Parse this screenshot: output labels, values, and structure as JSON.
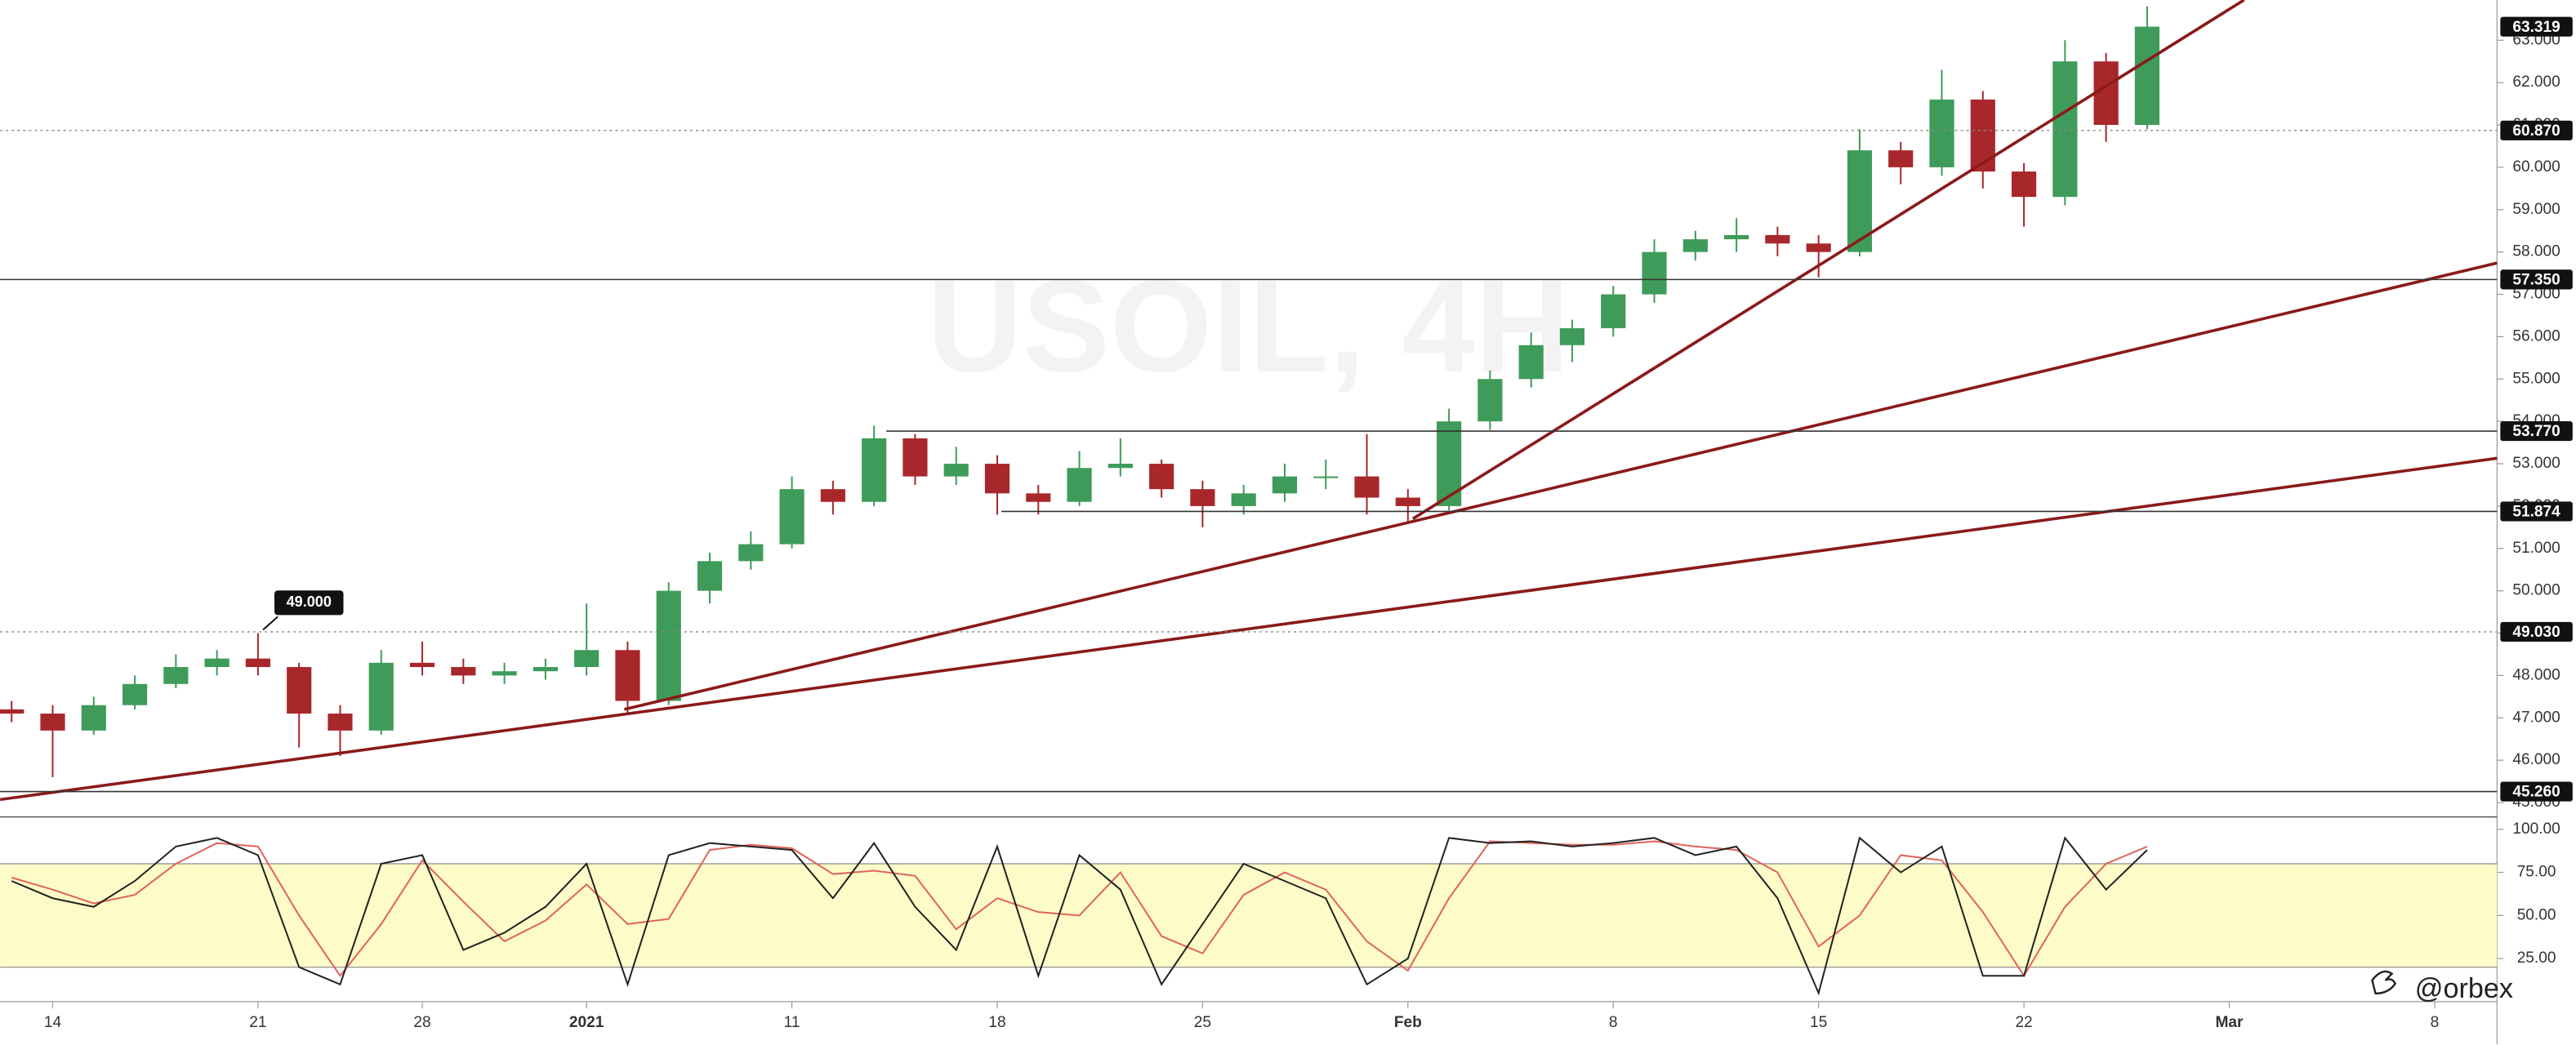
{
  "chart_data": [
    {
      "type": "candlestick",
      "watermark": "USOIL, 4H",
      "up_color": "#3f9b5a",
      "down_color": "#a8272b",
      "trend_color": "#8b1a1a",
      "xlim": [
        -1.28,
        59.52
      ],
      "ylim": [
        44.68,
        63.95
      ],
      "yticks": [
        {
          "value": 45,
          "label": "45.000"
        },
        {
          "value": 46,
          "label": "46.000"
        },
        {
          "value": 47,
          "label": "47.000"
        },
        {
          "value": 48,
          "label": "48.000"
        },
        {
          "value": 49,
          "label": "49.000"
        },
        {
          "value": 50,
          "label": "50.000"
        },
        {
          "value": 51,
          "label": "51.000"
        },
        {
          "value": 52,
          "label": "52.000"
        },
        {
          "value": 53,
          "label": "53.000"
        },
        {
          "value": 54,
          "label": "54.000"
        },
        {
          "value": 55,
          "label": "55.000"
        },
        {
          "value": 56,
          "label": "56.000"
        },
        {
          "value": 57,
          "label": "57.000"
        },
        {
          "value": 58,
          "label": "58.000"
        },
        {
          "value": 59,
          "label": "59.000"
        },
        {
          "value": 60,
          "label": "60.000"
        },
        {
          "value": 61,
          "label": "61.000"
        },
        {
          "value": 62,
          "label": "62.000"
        },
        {
          "value": 63,
          "label": "63.000"
        }
      ],
      "x": [
        -1,
        0,
        1,
        2,
        3,
        4,
        5,
        6,
        7,
        8,
        9,
        10,
        11,
        12,
        13,
        14,
        15,
        16,
        17,
        18,
        19,
        20,
        21,
        22,
        23,
        24,
        25,
        26,
        27,
        28,
        29,
        30,
        31,
        32,
        33,
        34,
        35,
        36,
        37,
        38,
        39,
        40,
        41,
        42,
        43,
        44,
        45,
        46,
        47,
        48,
        49,
        50,
        51
      ],
      "open": [
        47.2,
        47.1,
        46.7,
        47.3,
        47.8,
        48.2,
        48.4,
        48.2,
        47.1,
        46.7,
        48.3,
        48.2,
        48.0,
        48.1,
        48.2,
        48.6,
        47.4,
        50.0,
        50.7,
        51.1,
        52.4,
        52.1,
        53.6,
        52.7,
        53.0,
        52.3,
        52.1,
        52.9,
        53.0,
        52.4,
        52.0,
        52.3,
        52.7,
        52.7,
        52.2,
        52.0,
        54.0,
        55.0,
        55.8,
        56.2,
        57.0,
        58.0,
        58.3,
        58.4,
        58.2,
        58.0,
        60.4,
        60.0,
        61.6,
        59.9,
        59.3,
        62.5,
        61.0
      ],
      "high": [
        47.4,
        47.3,
        47.5,
        48.0,
        48.5,
        48.6,
        49.0,
        48.3,
        47.3,
        48.6,
        48.8,
        48.4,
        48.3,
        48.4,
        49.7,
        48.8,
        50.2,
        50.9,
        51.4,
        52.7,
        52.6,
        53.9,
        53.7,
        53.4,
        53.2,
        52.5,
        53.3,
        53.6,
        53.1,
        52.6,
        52.5,
        53.0,
        53.1,
        53.7,
        52.4,
        54.3,
        55.2,
        56.1,
        56.4,
        57.2,
        58.3,
        58.5,
        58.8,
        58.6,
        58.4,
        60.9,
        60.6,
        62.3,
        61.8,
        60.1,
        63.0,
        62.7,
        63.8
      ],
      "low": [
        46.9,
        45.6,
        46.6,
        47.2,
        47.7,
        48.0,
        48.0,
        46.3,
        46.1,
        46.6,
        48.0,
        47.8,
        47.8,
        47.9,
        48.0,
        47.1,
        47.3,
        49.7,
        50.5,
        51.0,
        51.8,
        52.0,
        52.5,
        52.5,
        51.8,
        51.8,
        52.0,
        52.7,
        52.2,
        51.5,
        51.8,
        52.1,
        52.4,
        51.8,
        51.6,
        51.9,
        53.8,
        54.8,
        55.4,
        56.0,
        56.8,
        57.8,
        58.0,
        57.9,
        57.4,
        57.9,
        59.6,
        59.8,
        59.5,
        58.6,
        59.1,
        60.6,
        60.9
      ],
      "close": [
        47.1,
        46.7,
        47.3,
        47.8,
        48.2,
        48.4,
        48.2,
        47.1,
        46.7,
        48.3,
        48.2,
        48.0,
        48.1,
        48.2,
        48.6,
        47.4,
        50.0,
        50.7,
        51.1,
        52.4,
        52.1,
        53.6,
        52.7,
        53.0,
        52.3,
        52.1,
        52.9,
        53.0,
        52.4,
        52.0,
        52.3,
        52.7,
        52.7,
        52.2,
        52.0,
        54.0,
        55.0,
        55.8,
        56.2,
        57.0,
        58.0,
        58.3,
        58.4,
        58.2,
        58.0,
        60.4,
        60.0,
        61.6,
        59.9,
        59.3,
        62.5,
        61.0,
        63.32
      ],
      "levels": [
        {
          "value": 63.319,
          "label": "63.319",
          "style": "none"
        },
        {
          "value": 60.87,
          "label": "60.870",
          "style": "dotted"
        },
        {
          "value": 57.35,
          "label": "57.350",
          "style": "solid"
        },
        {
          "value": 53.77,
          "label": "53.770",
          "style": "solid",
          "start": 20.3
        },
        {
          "value": 51.874,
          "label": "51.874",
          "style": "solid",
          "start": 23.1
        },
        {
          "value": 49.03,
          "label": "49.030",
          "style": "dotted"
        },
        {
          "value": 45.26,
          "label": "45.260",
          "style": "solid"
        }
      ],
      "trendlines": [
        {
          "x": [
            -1.28,
            59.52
          ],
          "y": [
            45.07,
            53.13
          ]
        },
        {
          "x": [
            13.92,
            59.52
          ],
          "y": [
            47.2,
            57.74
          ]
        },
        {
          "x": [
            33.12,
            53.36
          ],
          "y": [
            51.7,
            63.95
          ]
        }
      ],
      "annotation": {
        "value": 49,
        "label": "49.000",
        "x": 5
      }
    },
    {
      "type": "stochastic",
      "logo": "@orbex",
      "xlim": [
        -1.28,
        59.52
      ],
      "ylim": [
        0,
        106.7
      ],
      "band": [
        20,
        80
      ],
      "band_color": "#fdfbc8",
      "yticks": [
        {
          "value": 25,
          "label": "25.00"
        },
        {
          "value": 50,
          "label": "50.00"
        },
        {
          "value": 75,
          "label": "75.00"
        },
        {
          "value": 100,
          "label": "100.00"
        }
      ],
      "xticks": [
        {
          "value": 0,
          "label": "14"
        },
        {
          "value": 5,
          "label": "21"
        },
        {
          "value": 9,
          "label": "28"
        },
        {
          "value": 13,
          "label": "2021"
        },
        {
          "value": 18,
          "label": "11"
        },
        {
          "value": 23,
          "label": "18"
        },
        {
          "value": 28,
          "label": "25"
        },
        {
          "value": 33,
          "label": "Feb"
        },
        {
          "value": 38,
          "label": "8"
        },
        {
          "value": 43,
          "label": "15"
        },
        {
          "value": 48,
          "label": "22"
        },
        {
          "value": 53,
          "label": "Mar"
        },
        {
          "value": 58,
          "label": "8"
        }
      ],
      "x": [
        -1,
        0,
        1,
        2,
        3,
        4,
        5,
        6,
        7,
        8,
        9,
        10,
        11,
        12,
        13,
        14,
        15,
        16,
        17,
        18,
        19,
        20,
        21,
        22,
        23,
        24,
        25,
        26,
        27,
        28,
        29,
        30,
        31,
        32,
        33,
        34,
        35,
        36,
        37,
        38,
        39,
        40,
        41,
        42,
        43,
        44,
        45,
        46,
        47,
        48,
        49,
        50,
        51
      ],
      "series": [
        {
          "color": "#222222",
          "values": [
            70,
            60,
            55,
            70,
            90,
            95,
            85,
            20,
            10,
            80,
            85,
            30,
            40,
            55,
            80,
            10,
            85,
            92,
            90,
            88,
            60,
            92,
            55,
            30,
            90,
            15,
            85,
            65,
            10,
            45,
            80,
            70,
            60,
            10,
            25,
            95,
            92,
            93,
            90,
            92,
            95,
            85,
            90,
            60,
            5,
            95,
            75,
            90,
            15,
            15,
            95,
            65,
            88
          ]
        },
        {
          "color": "#e0645c",
          "values": [
            72,
            65,
            57,
            62,
            80,
            92,
            90,
            50,
            15,
            45,
            82,
            58,
            35,
            47,
            68,
            45,
            48,
            88,
            91,
            89,
            74,
            76,
            73,
            42,
            60,
            52,
            50,
            75,
            38,
            28,
            62,
            75,
            65,
            35,
            18,
            60,
            93,
            92,
            91,
            91,
            93,
            90,
            88,
            75,
            32,
            50,
            85,
            82,
            52,
            15,
            55,
            80,
            90
          ]
        }
      ]
    }
  ]
}
